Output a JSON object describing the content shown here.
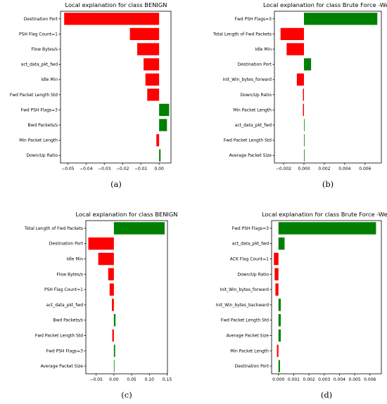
{
  "chart_data": [
    {
      "type": "bar",
      "title": "Local explanation for class BENIGN",
      "panel_label": "(a)",
      "categories": [
        "Destination Port",
        "PSH Flag Count=1",
        "Flow Bytes/s",
        "act_data_pkt_fwd",
        "Idle Min",
        "Fwd Packet Length Std",
        "Fwd PSH Flags=3",
        "Bwd Packets/s",
        "Min Packet Length",
        "Down/Up Ratio"
      ],
      "values": [
        -0.052,
        -0.016,
        -0.012,
        -0.0085,
        -0.0075,
        -0.0065,
        0.0055,
        0.0043,
        -0.0015,
        0.0008
      ],
      "xlim": [
        -0.054,
        0.0065
      ],
      "xticks": [
        -0.05,
        -0.04,
        -0.03,
        -0.02,
        -0.01,
        0.0
      ],
      "xtick_labels": [
        "−0.05",
        "−0.04",
        "−0.03",
        "−0.02",
        "−0.01",
        "0.00"
      ],
      "colors": {
        "positive": "#008000",
        "negative": "#ff0000"
      }
    },
    {
      "type": "bar",
      "title": "Local explanation for class Brute Force -Web",
      "panel_label": "(b)",
      "categories": [
        "Fwd PSH Flags=3",
        "Total Length of Fwd Packets",
        "Idle Min",
        "Destination Port",
        "Init_Win_bytes_forward",
        "Down/Up Ratio",
        "Min Packet Length",
        "act_data_pkt_fwd",
        "Fwd Packet Length Std",
        "Average Packet Size"
      ],
      "values": [
        0.0072,
        -0.0023,
        -0.0017,
        0.0007,
        -0.0007,
        -0.0001,
        -0.0001,
        5e-05,
        3e-05,
        2e-05
      ],
      "xlim": [
        -0.0029,
        0.0076
      ],
      "xticks": [
        -0.002,
        0.0,
        0.002,
        0.004,
        0.006
      ],
      "xtick_labels": [
        "−0.002",
        "0.000",
        "0.002",
        "0.004",
        "0.006"
      ],
      "colors": {
        "positive": "#008000",
        "negative": "#ff0000"
      }
    },
    {
      "type": "bar",
      "title": "Local explanation for class BENIGN",
      "panel_label": "(c)",
      "categories": [
        "Total Length of Fwd Packets",
        "Destination Port",
        "Idle Min",
        "Flow Bytes/s",
        "PSH Flag Count=1",
        "act_data_pkt_fwd",
        "Bwd Packets/s",
        "Fwd Packet Length Std",
        "Fwd PSH Flags=3",
        "Average Packet Size"
      ],
      "values": [
        0.143,
        -0.072,
        -0.044,
        -0.016,
        -0.012,
        -0.0055,
        0.0045,
        -0.0045,
        0.0035,
        0.0005
      ],
      "xlim": [
        -0.079,
        0.151
      ],
      "xticks": [
        -0.05,
        0.0,
        0.05,
        0.1,
        0.15
      ],
      "xtick_labels": [
        "−0.05",
        "0.00",
        "0.05",
        "0.10",
        "0.15"
      ],
      "colors": {
        "positive": "#008000",
        "negative": "#ff0000"
      }
    },
    {
      "type": "bar",
      "title": "Local explanation for class Brute Force -Web",
      "panel_label": "(d)",
      "categories": [
        "Fwd PSH Flags=3",
        "act_data_pkt_fwd",
        "ACK Flag Count=1",
        "Down/Up Ratio",
        "Init_Win_bytes_forward",
        "Init_Win_bytes_backward",
        "Fwd Packet Length Std",
        "Average Packet Size",
        "Min Packet Length",
        "Destination Port"
      ],
      "values": [
        0.0064,
        0.0004,
        -0.0003,
        -0.00025,
        -0.0002,
        0.00015,
        0.00015,
        0.00015,
        -0.0001,
        0.0001
      ],
      "xlim": [
        -0.00045,
        0.00675
      ],
      "xticks": [
        0.0,
        0.001,
        0.002,
        0.003,
        0.004,
        0.005,
        0.006
      ],
      "xtick_labels": [
        "0.000",
        "0.001",
        "0.002",
        "0.003",
        "0.004",
        "0.005",
        "0.006"
      ],
      "colors": {
        "positive": "#008000",
        "negative": "#ff0000"
      }
    }
  ]
}
